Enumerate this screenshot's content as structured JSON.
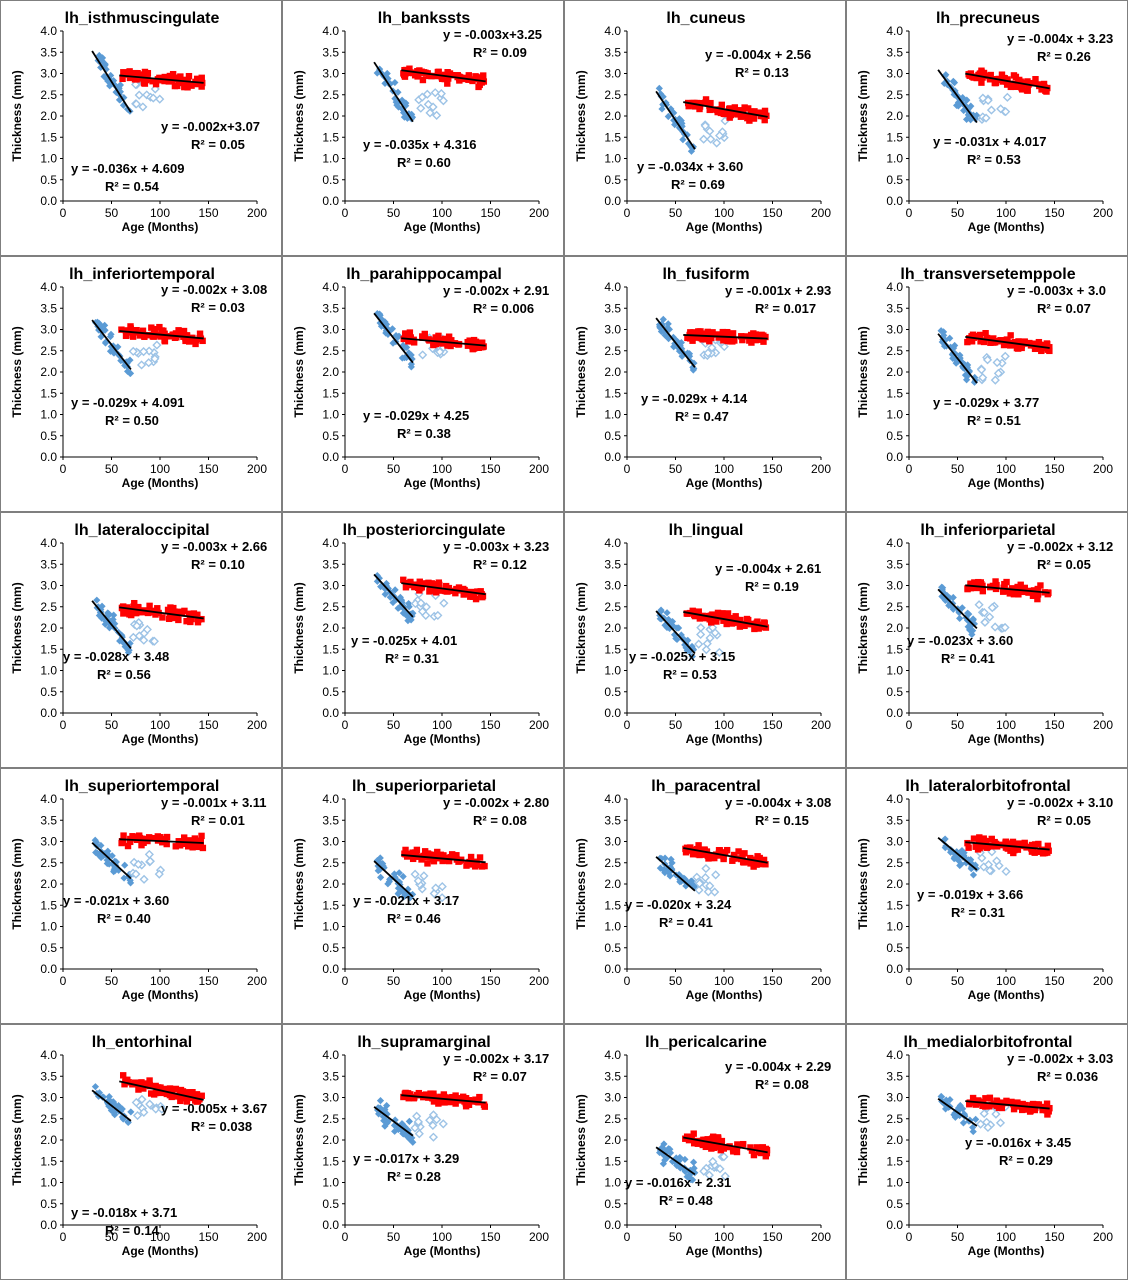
{
  "colors": {
    "young": "#5b9bd5",
    "young_open": "#9dc3e6",
    "old": "#ff0000",
    "trend": "#000000",
    "frame": "#7f7f7f"
  },
  "chart_data": [
    {
      "type": "scatter",
      "title": "lh_isthmuscingulate",
      "xlabel": "Age (Months)",
      "ylabel": "Thickness (mm)",
      "xlim": [
        0,
        200
      ],
      "ylim": [
        0,
        4
      ],
      "xticks": [
        "0",
        "50",
        "100",
        "150",
        "200"
      ],
      "yticks": [
        "0.0",
        "0.5",
        "1.0",
        "1.5",
        "2.0",
        "2.5",
        "3.0",
        "3.5",
        "4.0"
      ],
      "young_fit": {
        "slope": -0.036,
        "intercept": 4.609,
        "eq": "y = -0.036x + 4.609",
        "r2": "R² = 0.54"
      },
      "old_fit": {
        "slope": -0.002,
        "intercept": 3.07,
        "eq": "y = -0.002x+3.07",
        "r2": "R² = 0.05"
      }
    },
    {
      "type": "scatter",
      "title": "lh_bankssts",
      "xlabel": "Age (Months)",
      "ylabel": "Thickness (mm)",
      "xlim": [
        0,
        200
      ],
      "ylim": [
        0,
        4
      ],
      "xticks": [
        "0",
        "50",
        "100",
        "150",
        "200"
      ],
      "yticks": [
        "0.0",
        "0.5",
        "1.0",
        "1.5",
        "2.0",
        "2.5",
        "3.0",
        "3.5",
        "4.0"
      ],
      "young_fit": {
        "slope": -0.035,
        "intercept": 4.316,
        "eq": "y = -0.035x + 4.316",
        "r2": "R² = 0.60"
      },
      "old_fit": {
        "slope": -0.003,
        "intercept": 3.25,
        "eq": "y = -0.003x+3.25",
        "r2": "R² = 0.09"
      }
    },
    {
      "type": "scatter",
      "title": "lh_cuneus",
      "xlabel": "Age (Months)",
      "ylabel": "Thickness (mm)",
      "xlim": [
        0,
        200
      ],
      "ylim": [
        0,
        4
      ],
      "xticks": [
        "0",
        "50",
        "100",
        "150",
        "200"
      ],
      "yticks": [
        "0.0",
        "0.5",
        "1.0",
        "1.5",
        "2.0",
        "2.5",
        "3.0",
        "3.5",
        "4.0"
      ],
      "young_fit": {
        "slope": -0.034,
        "intercept": 3.6,
        "eq": "y = -0.034x + 3.60",
        "r2": "R² = 0.69"
      },
      "old_fit": {
        "slope": -0.004,
        "intercept": 2.56,
        "eq": "y = -0.004x + 2.56",
        "r2": "R² = 0.13"
      }
    },
    {
      "type": "scatter",
      "title": "lh_precuneus",
      "xlabel": "Age (Months)",
      "ylabel": "Thickness (mm)",
      "xlim": [
        0,
        200
      ],
      "ylim": [
        0,
        4
      ],
      "xticks": [
        "0",
        "50",
        "100",
        "150",
        "200"
      ],
      "yticks": [
        "0.0",
        "0.5",
        "1.0",
        "1.5",
        "2.0",
        "2.5",
        "3.0",
        "3.5",
        "4.0"
      ],
      "young_fit": {
        "slope": -0.031,
        "intercept": 4.017,
        "eq": "y = -0.031x + 4.017",
        "r2": "R² = 0.53"
      },
      "old_fit": {
        "slope": -0.004,
        "intercept": 3.23,
        "eq": "y = -0.004x + 3.23",
        "r2": "R² = 0.26"
      }
    },
    {
      "type": "scatter",
      "title": "lh_inferiortemporal",
      "xlabel": "Age (Months)",
      "ylabel": "Thickness (mm)",
      "xlim": [
        0,
        200
      ],
      "ylim": [
        0,
        4
      ],
      "xticks": [
        "0",
        "50",
        "100",
        "150",
        "200"
      ],
      "yticks": [
        "0.0",
        "0.5",
        "1.0",
        "1.5",
        "2.0",
        "2.5",
        "3.0",
        "3.5",
        "4.0"
      ],
      "young_fit": {
        "slope": -0.029,
        "intercept": 4.091,
        "eq": "y = -0.029x + 4.091",
        "r2": "R² = 0.50"
      },
      "old_fit": {
        "slope": -0.002,
        "intercept": 3.08,
        "eq": "y = -0.002x + 3.08",
        "r2": "R² = 0.03"
      }
    },
    {
      "type": "scatter",
      "title": "lh_parahippocampal",
      "xlabel": "Age (Months)",
      "ylabel": "Thickness (mm)",
      "xlim": [
        0,
        200
      ],
      "ylim": [
        0,
        4
      ],
      "xticks": [
        "0",
        "50",
        "100",
        "150",
        "200"
      ],
      "yticks": [
        "0.0",
        "0.5",
        "1.0",
        "1.5",
        "2.0",
        "2.5",
        "3.0",
        "3.5",
        "4.0"
      ],
      "young_fit": {
        "slope": -0.029,
        "intercept": 4.25,
        "eq": "y = -0.029x + 4.25",
        "r2": "R² = 0.38"
      },
      "old_fit": {
        "slope": -0.002,
        "intercept": 2.91,
        "eq": "y = -0.002x + 2.91",
        "r2": "R² = 0.006"
      }
    },
    {
      "type": "scatter",
      "title": "lh_fusiform",
      "xlabel": "Age (Months)",
      "ylabel": "Thickness (mm)",
      "xlim": [
        0,
        200
      ],
      "ylim": [
        0,
        4
      ],
      "xticks": [
        "0",
        "50",
        "100",
        "150",
        "200"
      ],
      "yticks": [
        "0.0",
        "0.5",
        "1.0",
        "1.5",
        "2.0",
        "2.5",
        "3.0",
        "3.5",
        "4.0"
      ],
      "young_fit": {
        "slope": -0.029,
        "intercept": 4.14,
        "eq": "y = -0.029x + 4.14",
        "r2": "R² = 0.47"
      },
      "old_fit": {
        "slope": -0.001,
        "intercept": 2.93,
        "eq": "y = -0.001x + 2.93",
        "r2": "R² = 0.017"
      }
    },
    {
      "type": "scatter",
      "title": "lh_transversetemppole",
      "xlabel": "Age (Months)",
      "ylabel": "Thickness (mm)",
      "xlim": [
        0,
        200
      ],
      "ylim": [
        0,
        4
      ],
      "xticks": [
        "0",
        "50",
        "100",
        "150",
        "200"
      ],
      "yticks": [
        "0.0",
        "0.5",
        "1.0",
        "1.5",
        "2.0",
        "2.5",
        "3.0",
        "3.5",
        "4.0"
      ],
      "young_fit": {
        "slope": -0.029,
        "intercept": 3.77,
        "eq": "y = -0.029x + 3.77",
        "r2": "R² = 0.51"
      },
      "old_fit": {
        "slope": -0.003,
        "intercept": 3.0,
        "eq": "y = -0.003x + 3.0",
        "r2": "R² = 0.07"
      }
    },
    {
      "type": "scatter",
      "title": "lh_lateraloccipital",
      "xlabel": "Age (Months)",
      "ylabel": "Thickness (mm)",
      "xlim": [
        0,
        200
      ],
      "ylim": [
        0,
        4
      ],
      "xticks": [
        "0",
        "50",
        "100",
        "150",
        "200"
      ],
      "yticks": [
        "0.0",
        "0.5",
        "1.0",
        "1.5",
        "2.0",
        "2.5",
        "3.0",
        "3.5",
        "4.0"
      ],
      "young_fit": {
        "slope": -0.028,
        "intercept": 3.48,
        "eq": "y = -0.028x + 3.48",
        "r2": "R² = 0.56"
      },
      "old_fit": {
        "slope": -0.003,
        "intercept": 2.66,
        "eq": "y = -0.003x + 2.66",
        "r2": "R² = 0.10"
      }
    },
    {
      "type": "scatter",
      "title": "lh_posteriorcingulate",
      "xlabel": "Age (Months)",
      "ylabel": "Thickness (mm)",
      "xlim": [
        0,
        200
      ],
      "ylim": [
        0,
        4
      ],
      "xticks": [
        "0",
        "50",
        "100",
        "150",
        "200"
      ],
      "yticks": [
        "0.0",
        "0.5",
        "1.0",
        "1.5",
        "2.0",
        "2.5",
        "3.0",
        "3.5",
        "4.0"
      ],
      "young_fit": {
        "slope": -0.025,
        "intercept": 4.01,
        "eq": "y = -0.025x + 4.01",
        "r2": "R² = 0.31"
      },
      "old_fit": {
        "slope": -0.003,
        "intercept": 3.23,
        "eq": "y = -0.003x + 3.23",
        "r2": "R² = 0.12"
      }
    },
    {
      "type": "scatter",
      "title": "lh_lingual",
      "xlabel": "Age (Months)",
      "ylabel": "Thickness (mm)",
      "xlim": [
        0,
        200
      ],
      "ylim": [
        0,
        4
      ],
      "xticks": [
        "0",
        "50",
        "100",
        "150",
        "200"
      ],
      "yticks": [
        "0.0",
        "0.5",
        "1.0",
        "1.5",
        "2.0",
        "2.5",
        "3.0",
        "3.5",
        "4.0"
      ],
      "young_fit": {
        "slope": -0.025,
        "intercept": 3.15,
        "eq": "y = -0.025x + 3.15",
        "r2": "R² = 0.53"
      },
      "old_fit": {
        "slope": -0.004,
        "intercept": 2.61,
        "eq": "y = -0.004x + 2.61",
        "r2": "R² = 0.19"
      }
    },
    {
      "type": "scatter",
      "title": "lh_inferiorparietal",
      "xlabel": "Age (Months)",
      "ylabel": "Thickness (mm)",
      "xlim": [
        0,
        200
      ],
      "ylim": [
        0,
        4
      ],
      "xticks": [
        "0",
        "50",
        "100",
        "150",
        "200"
      ],
      "yticks": [
        "0.0",
        "0.5",
        "1.0",
        "1.5",
        "2.0",
        "2.5",
        "3.0",
        "3.5",
        "4.0"
      ],
      "young_fit": {
        "slope": -0.023,
        "intercept": 3.6,
        "eq": "y = -0.023x + 3.60",
        "r2": "R² = 0.41"
      },
      "old_fit": {
        "slope": -0.002,
        "intercept": 3.12,
        "eq": "y = -0.002x + 3.12",
        "r2": "R² = 0.05"
      }
    },
    {
      "type": "scatter",
      "title": "lh_superiortemporal",
      "xlabel": "Age (Months)",
      "ylabel": "Thickness (mm)",
      "xlim": [
        0,
        200
      ],
      "ylim": [
        0,
        4
      ],
      "xticks": [
        "0",
        "50",
        "100",
        "150",
        "200"
      ],
      "yticks": [
        "0.0",
        "0.5",
        "1.0",
        "1.5",
        "2.0",
        "2.5",
        "3.0",
        "3.5",
        "4.0"
      ],
      "young_fit": {
        "slope": -0.021,
        "intercept": 3.6,
        "eq": "y = -0.021x + 3.60",
        "r2": "R² = 0.40"
      },
      "old_fit": {
        "slope": -0.001,
        "intercept": 3.11,
        "eq": "y = -0.001x + 3.11",
        "r2": "R² = 0.01"
      }
    },
    {
      "type": "scatter",
      "title": "lh_superiorparietal",
      "xlabel": "Age (Months)",
      "ylabel": "Thickness (mm)",
      "xlim": [
        0,
        200
      ],
      "ylim": [
        0,
        4
      ],
      "xticks": [
        "0",
        "50",
        "100",
        "150",
        "200"
      ],
      "yticks": [
        "0.0",
        "0.5",
        "1.0",
        "1.5",
        "2.0",
        "2.5",
        "3.0",
        "3.5",
        "4.0"
      ],
      "young_fit": {
        "slope": -0.021,
        "intercept": 3.17,
        "eq": "y = -0.021x + 3.17",
        "r2": "R² = 0.46"
      },
      "old_fit": {
        "slope": -0.002,
        "intercept": 2.8,
        "eq": "y = -0.002x + 2.80",
        "r2": "R² = 0.08"
      }
    },
    {
      "type": "scatter",
      "title": "lh_paracentral",
      "xlabel": "Age (Months)",
      "ylabel": "Thickness (mm)",
      "xlim": [
        0,
        200
      ],
      "ylim": [
        0,
        4
      ],
      "xticks": [
        "0",
        "50",
        "100",
        "150",
        "200"
      ],
      "yticks": [
        "0.0",
        "0.5",
        "1.0",
        "1.5",
        "2.0",
        "2.5",
        "3.0",
        "3.5",
        "4.0"
      ],
      "young_fit": {
        "slope": -0.02,
        "intercept": 3.24,
        "eq": "y = -0.020x + 3.24",
        "r2": "R² = 0.41"
      },
      "old_fit": {
        "slope": -0.004,
        "intercept": 3.08,
        "eq": "y = -0.004x + 3.08",
        "r2": "R² = 0.15"
      }
    },
    {
      "type": "scatter",
      "title": "lh_lateralorbitofrontal",
      "xlabel": "Age (Months)",
      "ylabel": "Thickness (mm)",
      "xlim": [
        0,
        200
      ],
      "ylim": [
        0,
        4
      ],
      "xticks": [
        "0",
        "50",
        "100",
        "150",
        "200"
      ],
      "yticks": [
        "0.0",
        "0.5",
        "1.0",
        "1.5",
        "2.0",
        "2.5",
        "3.0",
        "3.5",
        "4.0"
      ],
      "young_fit": {
        "slope": -0.019,
        "intercept": 3.66,
        "eq": "y = -0.019x + 3.66",
        "r2": "R² = 0.31"
      },
      "old_fit": {
        "slope": -0.002,
        "intercept": 3.1,
        "eq": "y = -0.002x + 3.10",
        "r2": "R² = 0.05"
      }
    },
    {
      "type": "scatter",
      "title": "lh_entorhinal",
      "xlabel": "Age (Months)",
      "ylabel": "Thickness (mm)",
      "xlim": [
        0,
        200
      ],
      "ylim": [
        0,
        4
      ],
      "xticks": [
        "0",
        "50",
        "100",
        "150",
        "200"
      ],
      "yticks": [
        "0.0",
        "0.5",
        "1.0",
        "1.5",
        "2.0",
        "2.5",
        "3.0",
        "3.5",
        "4.0"
      ],
      "young_fit": {
        "slope": -0.018,
        "intercept": 3.71,
        "eq": "y = -0.018x + 3.71",
        "r2": "R² = 0.14"
      },
      "old_fit": {
        "slope": -0.005,
        "intercept": 3.67,
        "eq": "y = -0.005x + 3.67",
        "r2": "R² = 0.038"
      }
    },
    {
      "type": "scatter",
      "title": "lh_supramarginal",
      "xlabel": "Age (Months)",
      "ylabel": "Thickness (mm)",
      "xlim": [
        0,
        200
      ],
      "ylim": [
        0,
        4
      ],
      "xticks": [
        "0",
        "50",
        "100",
        "150",
        "200"
      ],
      "yticks": [
        "0.0",
        "0.5",
        "1.0",
        "1.5",
        "2.0",
        "2.5",
        "3.0",
        "3.5",
        "4.0"
      ],
      "young_fit": {
        "slope": -0.017,
        "intercept": 3.29,
        "eq": "y = -0.017x + 3.29",
        "r2": "R² = 0.28"
      },
      "old_fit": {
        "slope": -0.002,
        "intercept": 3.17,
        "eq": "y = -0.002x + 3.17",
        "r2": "R² = 0.07"
      }
    },
    {
      "type": "scatter",
      "title": "lh_pericalcarine",
      "xlabel": "Age (Months)",
      "ylabel": "Thickness (mm)",
      "xlim": [
        0,
        200
      ],
      "ylim": [
        0,
        4
      ],
      "xticks": [
        "0",
        "50",
        "100",
        "150",
        "200"
      ],
      "yticks": [
        "0.0",
        "0.5",
        "1.0",
        "1.5",
        "2.0",
        "2.5",
        "3.0",
        "3.5",
        "4.0"
      ],
      "young_fit": {
        "slope": -0.016,
        "intercept": 2.31,
        "eq": "y = -0.016x + 2.31",
        "r2": "R² = 0.48"
      },
      "old_fit": {
        "slope": -0.004,
        "intercept": 2.29,
        "eq": "y = -0.004x + 2.29",
        "r2": "R² = 0.08"
      }
    },
    {
      "type": "scatter",
      "title": "lh_medialorbitofrontal",
      "xlabel": "Age (Months)",
      "ylabel": "Thickness (mm)",
      "xlim": [
        0,
        200
      ],
      "ylim": [
        0,
        4
      ],
      "xticks": [
        "0",
        "50",
        "100",
        "150",
        "200"
      ],
      "yticks": [
        "0.0",
        "0.5",
        "1.0",
        "1.5",
        "2.0",
        "2.5",
        "3.0",
        "3.5",
        "4.0"
      ],
      "young_fit": {
        "slope": -0.016,
        "intercept": 3.45,
        "eq": "y = -0.016x + 3.45",
        "r2": "R² = 0.29"
      },
      "old_fit": {
        "slope": -0.002,
        "intercept": 3.03,
        "eq": "y = -0.002x + 3.03",
        "r2": "R² = 0.036"
      }
    }
  ]
}
